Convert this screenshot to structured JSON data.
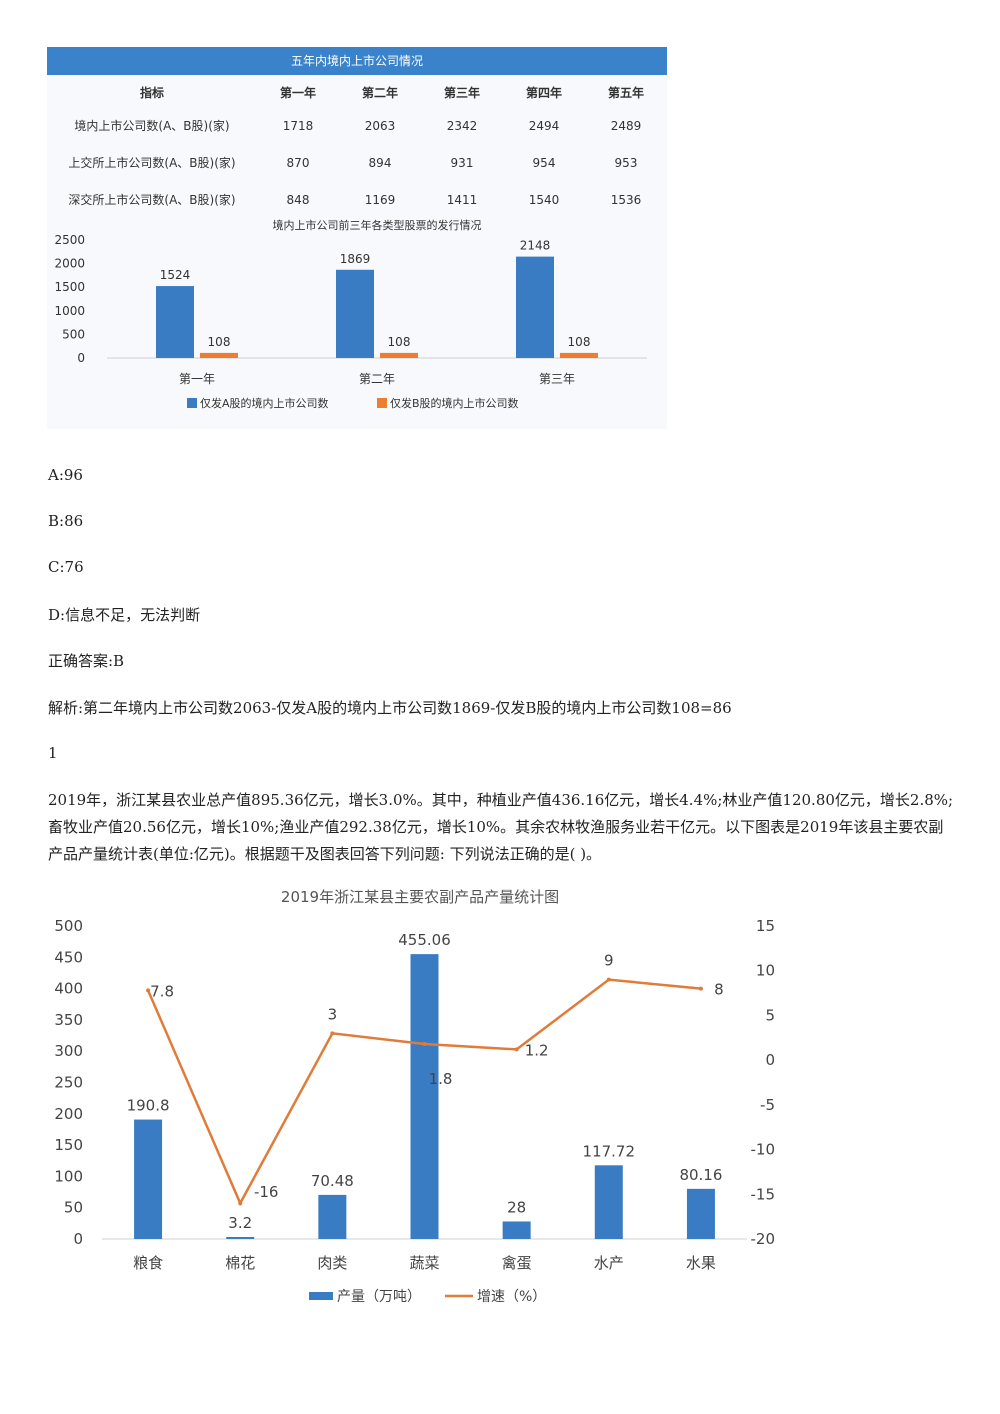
{
  "table": {
    "title": "五年内境内上市公司情况",
    "headers": [
      "指标",
      "第一年",
      "第二年",
      "第三年",
      "第四年",
      "第五年"
    ],
    "rows": [
      {
        "label": "境内上市公司数(A、B股)(家)",
        "values": [
          "1718",
          "2063",
          "2342",
          "2494",
          "2489"
        ]
      },
      {
        "label": "上交所上市公司数(A、B股)(家)",
        "values": [
          "870",
          "894",
          "931",
          "954",
          "953"
        ]
      },
      {
        "label": "深交所上市公司数(A、B股)(家)",
        "values": [
          "848",
          "1169",
          "1411",
          "1540",
          "1536"
        ]
      }
    ]
  },
  "chart_data": [
    {
      "type": "bar",
      "title": "境内上市公司前三年各类型股票的发行情况",
      "categories": [
        "第一年",
        "第二年",
        "第三年"
      ],
      "series": [
        {
          "name": "仅发A股的境内上市公司数",
          "values": [
            1524,
            1869,
            2148
          ],
          "color": "#3a7cc3"
        },
        {
          "name": "仅发B股的境内上市公司数",
          "values": [
            108,
            108,
            108
          ],
          "color": "#ed7d31"
        }
      ],
      "yticks": [
        "0",
        "500",
        "1000",
        "1500",
        "2000",
        "2500"
      ],
      "ylim": [
        0,
        2500
      ],
      "legend": "bottom"
    },
    {
      "type": "bar",
      "title": "2019年浙江某县主要农副产品产量统计图",
      "categories": [
        "粮食",
        "棉花",
        "肉类",
        "蔬菜",
        "禽蛋",
        "水产",
        "水果"
      ],
      "series": [
        {
          "name": "产量（万吨）",
          "type": "bar",
          "axis": "left",
          "values": [
            190.8,
            3.2,
            70.48,
            455.06,
            28,
            117.72,
            80.16
          ],
          "labels": [
            "190.8",
            "3.2",
            "70.48",
            "455.06",
            "28",
            "117.72",
            "80.16"
          ],
          "color": "#3a7cc3"
        },
        {
          "name": "增速（%）",
          "type": "line",
          "axis": "right",
          "values": [
            7.8,
            -16,
            3,
            1.8,
            1.2,
            9,
            8
          ],
          "labels": [
            "7.8",
            "-16",
            "3",
            "1.8",
            "1.2",
            "9",
            "8"
          ],
          "color": "#e07b39"
        }
      ],
      "yticks_left": [
        "0",
        "50",
        "100",
        "150",
        "200",
        "250",
        "300",
        "350",
        "400",
        "450",
        "500"
      ],
      "yticks_right": [
        "-20",
        "-15",
        "-10",
        "-5",
        "0",
        "5",
        "10",
        "15"
      ],
      "ylim_left": [
        0,
        500
      ],
      "ylim_right": [
        -20,
        15
      ],
      "legend": "bottom"
    }
  ],
  "options": [
    {
      "text": "A:96"
    },
    {
      "text": "B:86"
    },
    {
      "text": "C:76"
    },
    {
      "text": "D:信息不足，无法判断"
    }
  ],
  "answer": "正确答案:B",
  "analysis": "解析:第二年境内上市公司数2063-仅发A股的境内上市公司数1869-仅发B股的境内上市公司数108=86",
  "question_number": "1",
  "question_text": "2019年，浙江某县农业总产值895.36亿元，增长3.0%。其中，种植业产值436.16亿元，增长4.4%;林业产值120.80亿元，增长2.8%;畜牧业产值20.56亿元，增长10%;渔业产值292.38亿元，增长10%。其余农林牧渔服务业若干亿元。以下图表是2019年该县主要农副产品产量统计表(单位:亿元)。根据题干及图表回答下列问题: 下列说法正确的是( )。"
}
